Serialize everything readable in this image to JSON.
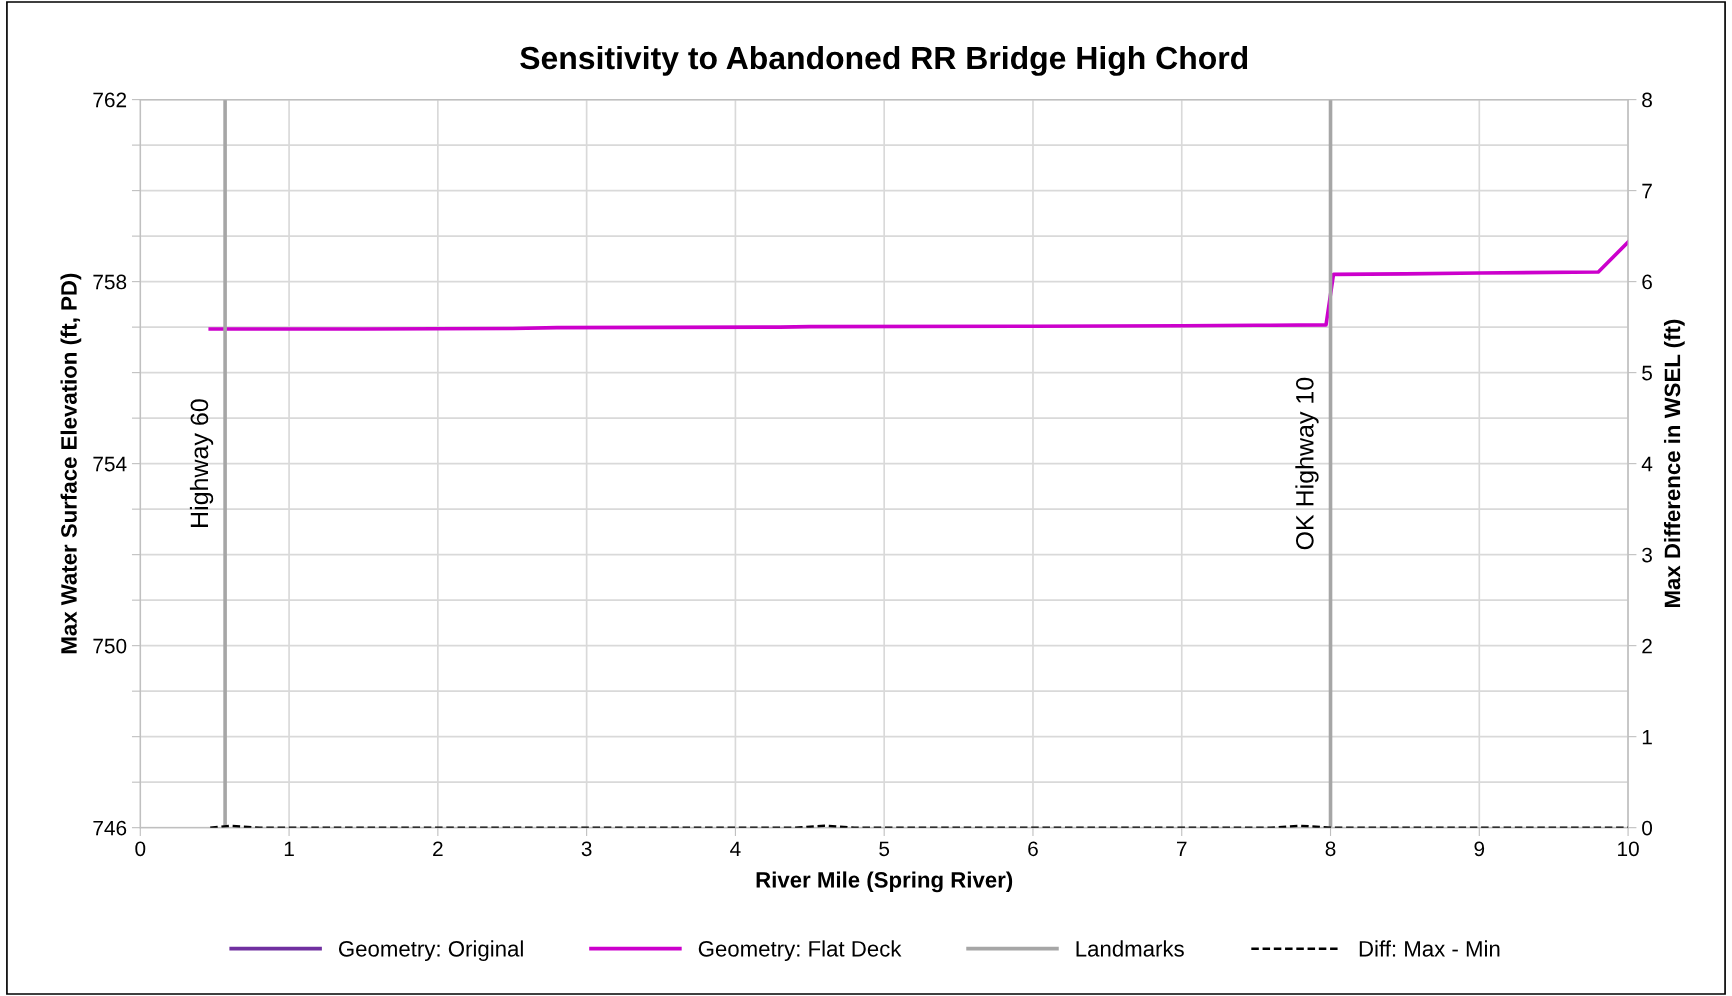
{
  "chart_data": {
    "type": "line",
    "title": "Sensitivity to Abandoned RR Bridge High Chord",
    "xlabel": "River Mile (Spring River)",
    "ylabel": "Max Water Surface Elevation (ft, PD)",
    "y2label": "Max Difference in WSEL (ft)",
    "xlim": [
      0,
      10
    ],
    "xticks": [
      0,
      1,
      2,
      3,
      4,
      5,
      6,
      7,
      8,
      9,
      10
    ],
    "ylim": [
      746,
      762
    ],
    "yticks": [
      746,
      {
        "value": 747,
        "label": null
      },
      {
        "value": 748,
        "label": null
      },
      {
        "value": 749,
        "label": null
      },
      750,
      {
        "value": 751,
        "label": null
      },
      {
        "value": 752,
        "label": null
      },
      {
        "value": 753,
        "label": null
      },
      754,
      {
        "value": 755,
        "label": null
      },
      {
        "value": 756,
        "label": null
      },
      {
        "value": 757,
        "label": null
      },
      758,
      {
        "value": 759,
        "label": null
      },
      {
        "value": 760,
        "label": null
      },
      {
        "value": 761,
        "label": null
      },
      762
    ],
    "y2lim": [
      0,
      8
    ],
    "y2ticks": [
      0,
      1,
      2,
      3,
      4,
      5,
      6,
      7,
      8
    ],
    "grid": true,
    "legend": "bottom",
    "marker": "none",
    "series": [
      {
        "name": "Geometry: Original",
        "color": "#7030a0",
        "line_style": "solid"
      },
      {
        "name": "Geometry: Flat Deck",
        "color": "#cc00cc",
        "line_style": "solid",
        "x": [
          0.47,
          1.5,
          2.5,
          2.8,
          4.3,
          4.5,
          6.0,
          7.0,
          7.5,
          7.97,
          8.02,
          8.5,
          9.0,
          9.8,
          10
        ],
        "values": [
          756.96,
          756.96,
          756.97,
          756.99,
          757.0,
          757.01,
          757.02,
          757.03,
          757.04,
          757.05,
          758.16,
          758.17,
          758.19,
          758.21,
          758.87
        ]
      },
      {
        "name": "Landmarks",
        "color": "#a6a6a6",
        "line_style": "solid",
        "x": [
          0.57,
          0.57,
          null,
          8.0,
          8.0
        ],
        "values": [
          746,
          762,
          null,
          746,
          762
        ]
      },
      {
        "name": "Diff: Max - Min",
        "color": "#000000",
        "line_style": "dashed",
        "axis": "y2",
        "x": [
          0.47,
          0.6,
          0.8,
          4.4,
          4.6,
          4.8,
          7.6,
          7.8,
          8.0,
          10
        ],
        "values": [
          0,
          0.02,
          0,
          0,
          0.02,
          0,
          0,
          0.02,
          0,
          0
        ]
      }
    ],
    "annotations": [
      {
        "text": "Highway 60",
        "x": 0.57,
        "y": 754
      },
      {
        "text": "OK Highway 10",
        "x": 8.0,
        "y": 754
      }
    ]
  }
}
